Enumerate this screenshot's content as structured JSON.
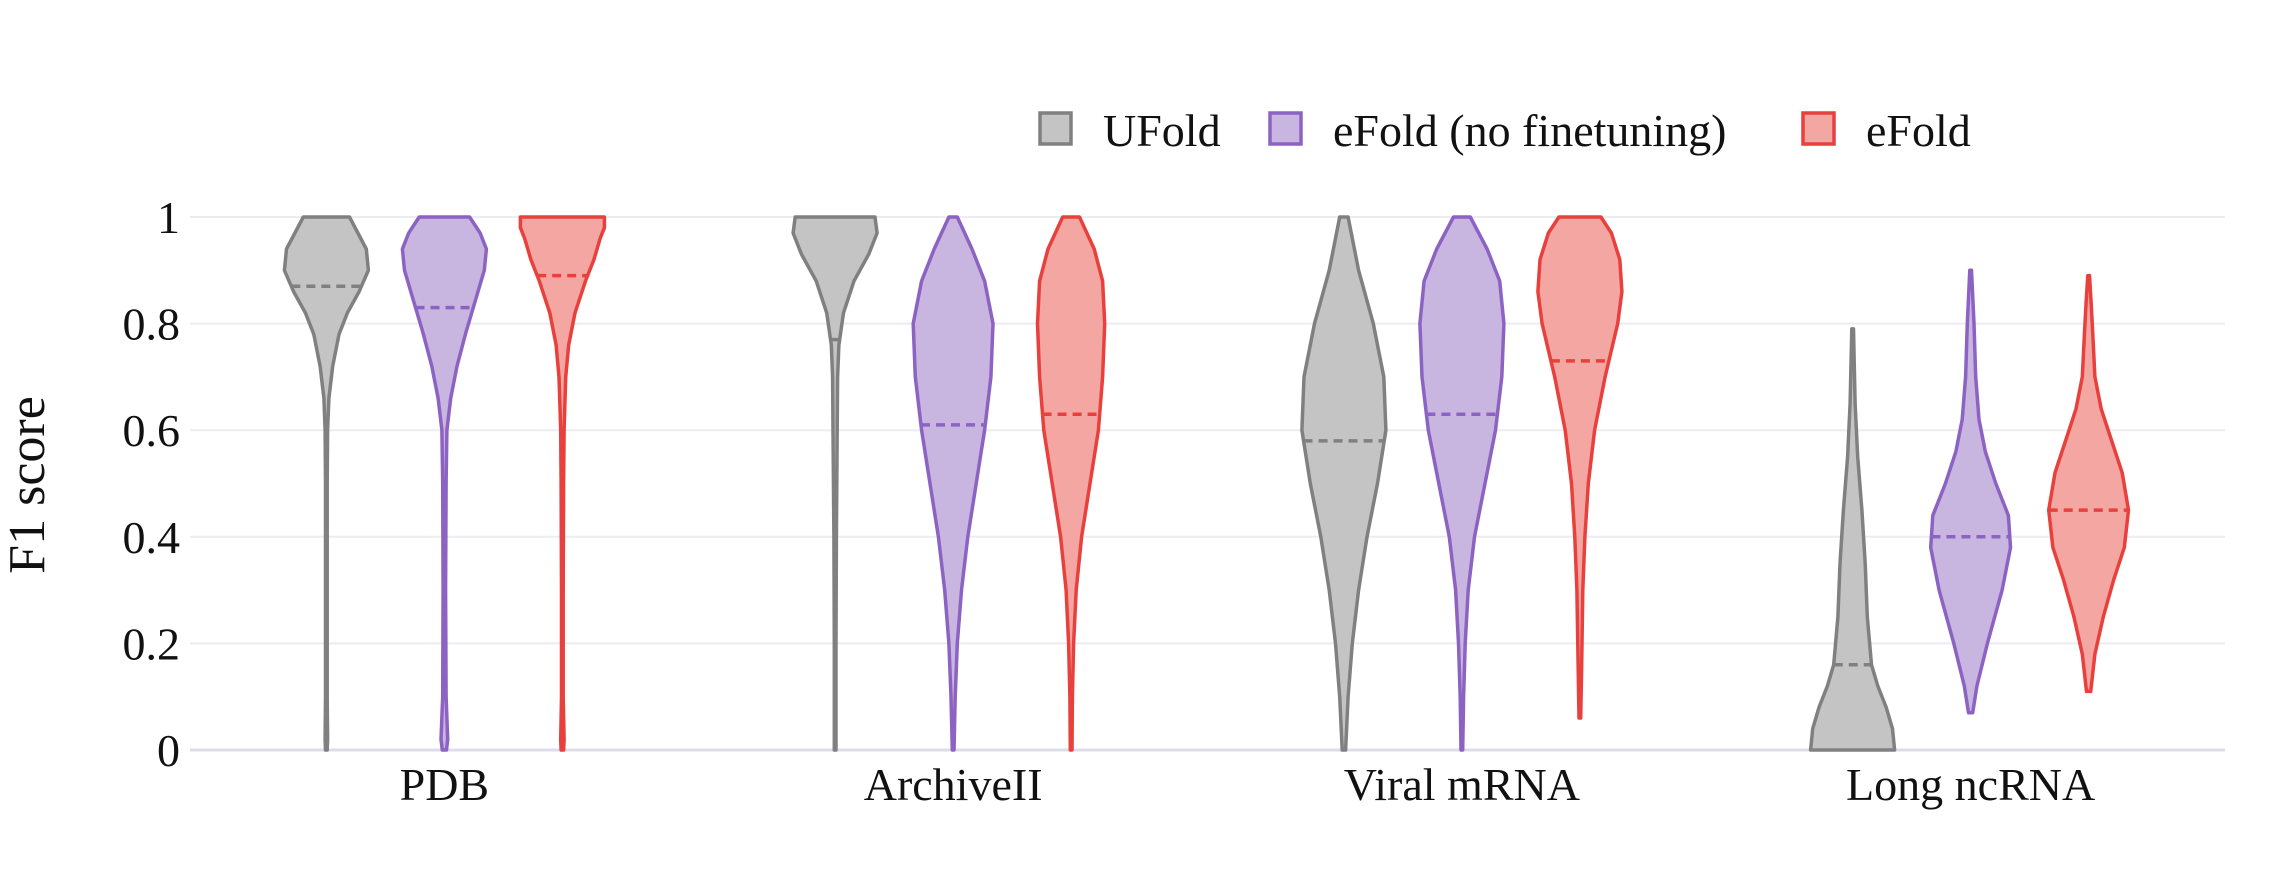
{
  "chart_data": {
    "type": "violin",
    "ylabel": "F1 score",
    "ylim": [
      0,
      1
    ],
    "yticks": [
      {
        "value": 0,
        "label": "0"
      },
      {
        "value": 0.2,
        "label": "0.2"
      },
      {
        "value": 0.4,
        "label": "0.4"
      },
      {
        "value": 0.6,
        "label": "0.6"
      },
      {
        "value": 0.8,
        "label": "0.8"
      },
      {
        "value": 1,
        "label": "1"
      }
    ],
    "grid": true,
    "legend_position": "top-right",
    "categories": [
      "PDB",
      "ArchiveII",
      "Viral mRNA",
      "Long ncRNA"
    ],
    "series": [
      {
        "name": "UFold",
        "color": "#808080",
        "fill": "#c4c4c4",
        "medians": [
          0.87,
          0.77,
          0.58,
          0.16
        ],
        "ranges": [
          [
            0,
            1
          ],
          [
            0,
            1
          ],
          [
            0,
            1
          ],
          [
            0,
            0.79
          ]
        ],
        "profiles": [
          [
            [
              0,
              0.02
            ],
            [
              0.02,
              0.03
            ],
            [
              0.1,
              0.02
            ],
            [
              0.3,
              0.02
            ],
            [
              0.5,
              0.02
            ],
            [
              0.6,
              0.03
            ],
            [
              0.66,
              0.06
            ],
            [
              0.72,
              0.15
            ],
            [
              0.78,
              0.3
            ],
            [
              0.82,
              0.5
            ],
            [
              0.86,
              0.78
            ],
            [
              0.9,
              1.0
            ],
            [
              0.94,
              0.95
            ],
            [
              0.97,
              0.75
            ],
            [
              1,
              0.55
            ]
          ],
          [
            [
              0,
              0.02
            ],
            [
              0.2,
              0.02
            ],
            [
              0.4,
              0.03
            ],
            [
              0.6,
              0.05
            ],
            [
              0.7,
              0.06
            ],
            [
              0.76,
              0.09
            ],
            [
              0.82,
              0.2
            ],
            [
              0.88,
              0.45
            ],
            [
              0.93,
              0.8
            ],
            [
              0.97,
              1.0
            ],
            [
              1,
              0.95
            ]
          ],
          [
            [
              0,
              0.04
            ],
            [
              0.1,
              0.1
            ],
            [
              0.2,
              0.2
            ],
            [
              0.3,
              0.35
            ],
            [
              0.4,
              0.55
            ],
            [
              0.5,
              0.8
            ],
            [
              0.6,
              1.0
            ],
            [
              0.7,
              0.95
            ],
            [
              0.8,
              0.7
            ],
            [
              0.9,
              0.35
            ],
            [
              1,
              0.1
            ]
          ],
          [
            [
              0,
              1.0
            ],
            [
              0.04,
              0.95
            ],
            [
              0.08,
              0.8
            ],
            [
              0.12,
              0.6
            ],
            [
              0.16,
              0.45
            ],
            [
              0.25,
              0.35
            ],
            [
              0.35,
              0.3
            ],
            [
              0.45,
              0.22
            ],
            [
              0.55,
              0.12
            ],
            [
              0.65,
              0.06
            ],
            [
              0.79,
              0.02
            ]
          ]
        ]
      },
      {
        "name": "eFold (no finetuning)",
        "color": "#8c63c2",
        "fill": "#c8b5e0",
        "medians": [
          0.83,
          0.61,
          0.63,
          0.4
        ],
        "ranges": [
          [
            0,
            1
          ],
          [
            0,
            1
          ],
          [
            0,
            1
          ],
          [
            0.07,
            0.9
          ]
        ],
        "profiles": [
          [
            [
              0,
              0.05
            ],
            [
              0.02,
              0.08
            ],
            [
              0.1,
              0.04
            ],
            [
              0.3,
              0.03
            ],
            [
              0.5,
              0.04
            ],
            [
              0.6,
              0.06
            ],
            [
              0.66,
              0.15
            ],
            [
              0.72,
              0.3
            ],
            [
              0.78,
              0.5
            ],
            [
              0.82,
              0.65
            ],
            [
              0.86,
              0.8
            ],
            [
              0.9,
              0.95
            ],
            [
              0.94,
              1.0
            ],
            [
              0.97,
              0.85
            ],
            [
              1,
              0.6
            ]
          ],
          [
            [
              0,
              0.02
            ],
            [
              0.1,
              0.05
            ],
            [
              0.2,
              0.1
            ],
            [
              0.3,
              0.2
            ],
            [
              0.4,
              0.35
            ],
            [
              0.5,
              0.55
            ],
            [
              0.6,
              0.75
            ],
            [
              0.7,
              0.9
            ],
            [
              0.8,
              0.95
            ],
            [
              0.88,
              0.75
            ],
            [
              0.94,
              0.45
            ],
            [
              1,
              0.1
            ]
          ],
          [
            [
              0,
              0.02
            ],
            [
              0.1,
              0.04
            ],
            [
              0.2,
              0.08
            ],
            [
              0.3,
              0.15
            ],
            [
              0.4,
              0.3
            ],
            [
              0.5,
              0.55
            ],
            [
              0.6,
              0.8
            ],
            [
              0.7,
              0.95
            ],
            [
              0.8,
              1.0
            ],
            [
              0.88,
              0.9
            ],
            [
              0.94,
              0.6
            ],
            [
              1,
              0.2
            ]
          ],
          [
            [
              0.07,
              0.05
            ],
            [
              0.12,
              0.15
            ],
            [
              0.2,
              0.4
            ],
            [
              0.3,
              0.75
            ],
            [
              0.38,
              0.95
            ],
            [
              0.44,
              0.9
            ],
            [
              0.5,
              0.6
            ],
            [
              0.56,
              0.35
            ],
            [
              0.62,
              0.2
            ],
            [
              0.7,
              0.12
            ],
            [
              0.8,
              0.08
            ],
            [
              0.9,
              0.02
            ]
          ]
        ]
      },
      {
        "name": "eFold",
        "color": "#e8413d",
        "fill": "#f4a6a3",
        "medians": [
          0.89,
          0.63,
          0.73,
          0.45
        ],
        "ranges": [
          [
            0,
            1
          ],
          [
            0,
            1
          ],
          [
            0.06,
            1
          ],
          [
            0.11,
            0.89
          ]
        ],
        "profiles": [
          [
            [
              0,
              0.03
            ],
            [
              0.02,
              0.04
            ],
            [
              0.1,
              0.02
            ],
            [
              0.3,
              0.02
            ],
            [
              0.5,
              0.03
            ],
            [
              0.6,
              0.04
            ],
            [
              0.7,
              0.08
            ],
            [
              0.76,
              0.15
            ],
            [
              0.82,
              0.3
            ],
            [
              0.88,
              0.55
            ],
            [
              0.92,
              0.75
            ],
            [
              0.96,
              0.9
            ],
            [
              0.98,
              1.0
            ],
            [
              1,
              1.0
            ]
          ],
          [
            [
              0,
              0.02
            ],
            [
              0.1,
              0.03
            ],
            [
              0.2,
              0.06
            ],
            [
              0.3,
              0.12
            ],
            [
              0.4,
              0.25
            ],
            [
              0.5,
              0.45
            ],
            [
              0.6,
              0.65
            ],
            [
              0.7,
              0.75
            ],
            [
              0.8,
              0.8
            ],
            [
              0.88,
              0.75
            ],
            [
              0.94,
              0.55
            ],
            [
              1,
              0.2
            ]
          ],
          [
            [
              0.06,
              0.02
            ],
            [
              0.15,
              0.04
            ],
            [
              0.3,
              0.07
            ],
            [
              0.4,
              0.12
            ],
            [
              0.5,
              0.2
            ],
            [
              0.6,
              0.35
            ],
            [
              0.7,
              0.6
            ],
            [
              0.8,
              0.9
            ],
            [
              0.86,
              1.0
            ],
            [
              0.92,
              0.95
            ],
            [
              0.97,
              0.75
            ],
            [
              1,
              0.5
            ]
          ],
          [
            [
              0.11,
              0.05
            ],
            [
              0.18,
              0.15
            ],
            [
              0.25,
              0.35
            ],
            [
              0.32,
              0.6
            ],
            [
              0.38,
              0.85
            ],
            [
              0.45,
              0.95
            ],
            [
              0.52,
              0.8
            ],
            [
              0.58,
              0.55
            ],
            [
              0.64,
              0.3
            ],
            [
              0.7,
              0.15
            ],
            [
              0.78,
              0.1
            ],
            [
              0.84,
              0.06
            ],
            [
              0.89,
              0.02
            ]
          ]
        ]
      }
    ]
  }
}
